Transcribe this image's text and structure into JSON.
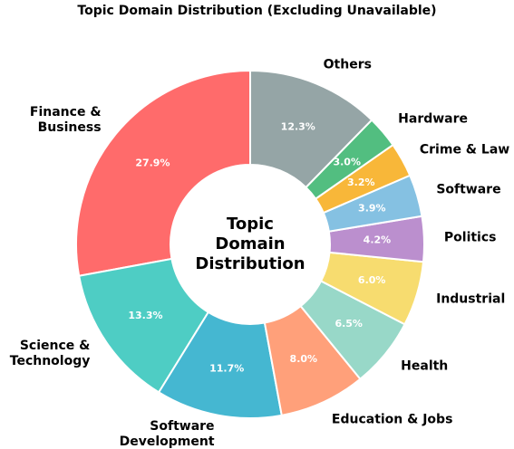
{
  "chart_data": {
    "type": "donut",
    "title": "Topic Domain Distribution (Excluding Unavailable)",
    "center_label": "Topic\nDomain\nDistribution",
    "categories": [
      "Finance &\nBusiness",
      "Science &\nTechnology",
      "Software\nDevelopment",
      "Education & Jobs",
      "Health",
      "Industrial",
      "Politics",
      "Software",
      "Crime & Law",
      "Hardware",
      "Others"
    ],
    "values": [
      27.9,
      13.3,
      11.7,
      8.0,
      6.5,
      6.0,
      4.2,
      3.9,
      3.2,
      3.0,
      12.3
    ],
    "value_labels": [
      "27.9%",
      "13.3%",
      "11.7%",
      "8.0%",
      "6.5%",
      "6.0%",
      "4.2%",
      "3.9%",
      "3.2%",
      "3.0%",
      "12.3%"
    ],
    "colors": [
      "#ff6b6b",
      "#4ecdc4",
      "#45b7d1",
      "#ffa07a",
      "#98d8c8",
      "#f7dc6f",
      "#bb8fce",
      "#85c1e2",
      "#f8b739",
      "#52be80",
      "#95a5a6"
    ],
    "start_angle": 90
  }
}
